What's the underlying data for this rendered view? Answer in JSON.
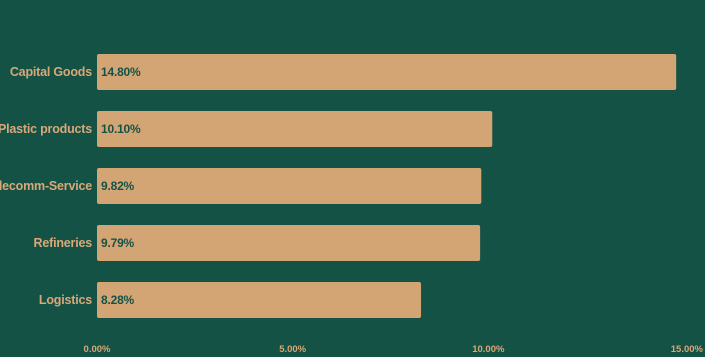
{
  "colors": {
    "background": "#155246",
    "bar": "#D4A574",
    "label": "#D8A878",
    "value_text": "#155246"
  },
  "chart_data": {
    "type": "bar",
    "orientation": "horizontal",
    "categories": [
      "Capital Goods",
      "Plastic products",
      "Telecomm-Service",
      "Refineries",
      "Logistics"
    ],
    "values": [
      14.8,
      10.1,
      9.82,
      9.79,
      8.28
    ],
    "value_labels": [
      "14.80%",
      "10.10%",
      "9.82%",
      "9.79%",
      "8.28%"
    ],
    "xlim": [
      0,
      15
    ],
    "x_ticks": [
      0,
      5,
      10,
      15
    ],
    "x_tick_labels": [
      "0.00%",
      "5.00%",
      "10.00%",
      "15.00%"
    ],
    "grid": false,
    "legend": "none"
  }
}
